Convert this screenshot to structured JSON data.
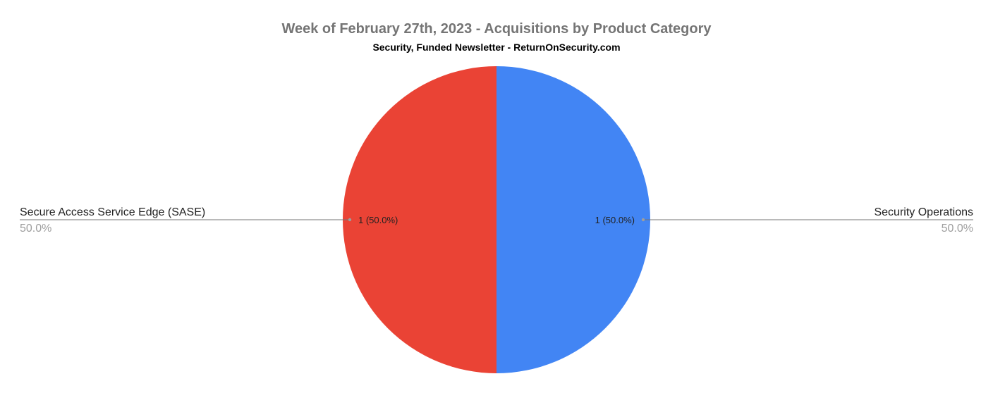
{
  "chart_data": {
    "type": "pie",
    "title": "Week of February 27th, 2023 - Acquisitions by Product Category",
    "subtitle": "Security, Funded Newsletter - ReturnOnSecurity.com",
    "slices": [
      {
        "label": "Security Operations",
        "value": 1,
        "percent": "50.0%",
        "data_label": "1 (50.0%)",
        "color": "#4285f4"
      },
      {
        "label": "Secure Access Service Edge (SASE)",
        "value": 1,
        "percent": "50.0%",
        "data_label": "1 (50.0%)",
        "color": "#ea4335"
      }
    ],
    "legend_placement": "labeled-leader-lines"
  }
}
